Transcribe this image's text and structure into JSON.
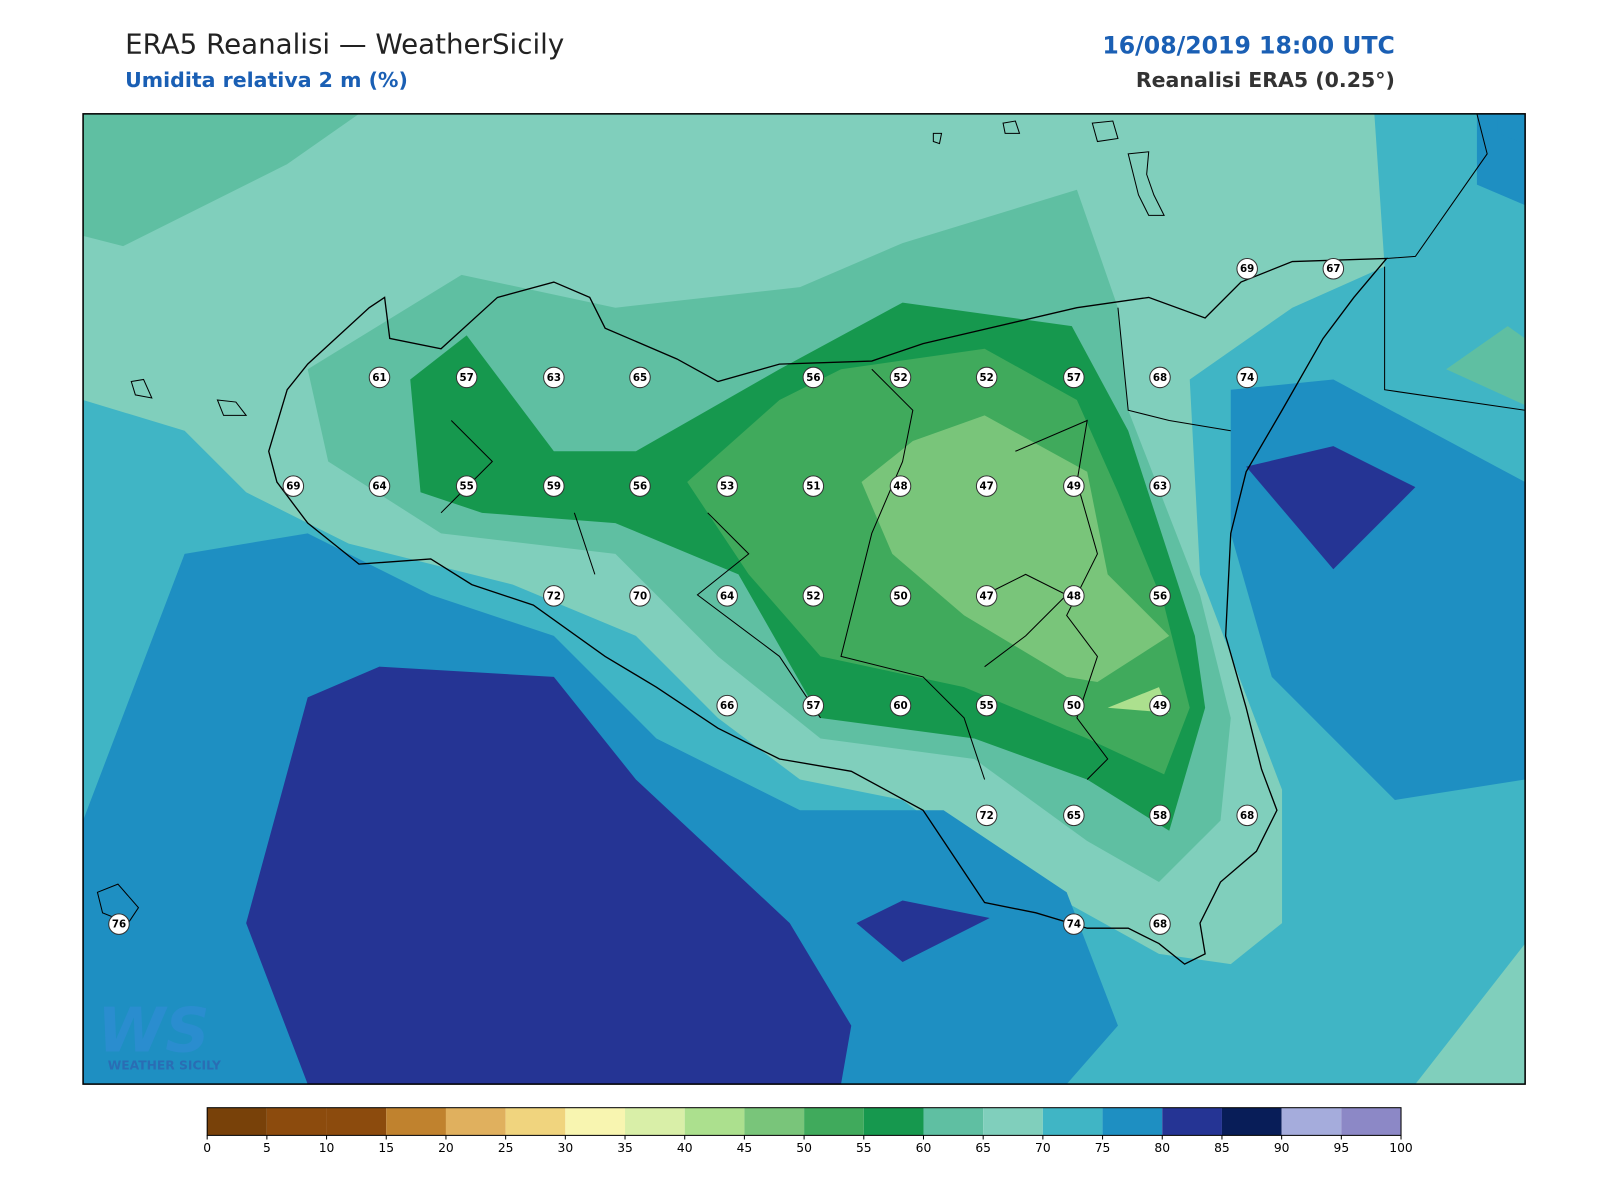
{
  "header": {
    "title": "ERA5 Reanalisi — WeatherSicily",
    "subtitle": "Umidita relativa 2 m (%)",
    "date": "16/08/2019 18:00 UTC",
    "source": "Reanalisi ERA5 (0.25°)"
  },
  "stations": [
    69,
    67,
    61,
    57,
    63,
    65,
    56,
    52,
    52,
    57,
    68,
    74,
    69,
    64,
    55,
    59,
    56,
    53,
    51,
    48,
    47,
    49,
    63,
    72,
    70,
    64,
    52,
    50,
    47,
    48,
    56,
    66,
    57,
    60,
    55,
    50,
    49,
    72,
    65,
    58,
    68,
    76,
    74,
    68
  ],
  "logo": {
    "mark": "WS",
    "text": "WEATHER SICILY"
  },
  "colorbar": {
    "ticks": [
      0,
      5,
      10,
      15,
      20,
      25,
      30,
      35,
      40,
      45,
      50,
      55,
      60,
      65,
      70,
      75,
      80,
      85,
      90,
      95,
      100
    ],
    "colors": [
      "#784109",
      "#8c4b0d",
      "#8c4b0d",
      "#c0822e",
      "#e0b05e",
      "#f0d47e",
      "#f8f5b0",
      "#d9efa8",
      "#ace08e",
      "#79c57a",
      "#40aa5c",
      "#16984e",
      "#5fbfa2",
      "#80cfbc",
      "#40b5c5",
      "#1e8fc2",
      "#253494",
      "#081d58",
      "#a5acdc",
      "#8c88c6"
    ]
  }
}
